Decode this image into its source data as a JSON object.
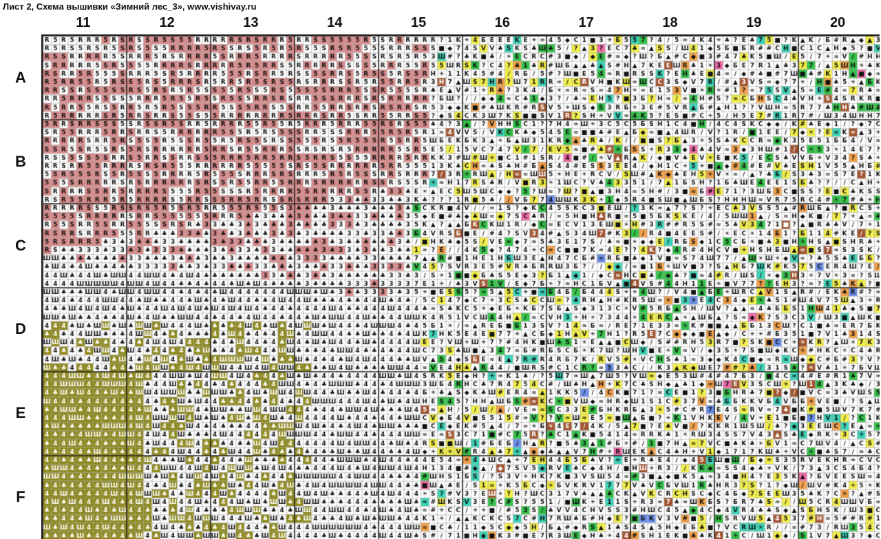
{
  "header": {
    "title": "Лист 2, Схема вышивки «Зимний лес_3», www.vishivay.ru"
  },
  "columns": [
    "11",
    "12",
    "13",
    "14",
    "15",
    "16",
    "17",
    "18",
    "19",
    "20"
  ],
  "rows": [
    "A",
    "B",
    "C",
    "D",
    "E",
    "F"
  ],
  "palette": {
    "salmon": "#d98c8c",
    "olive": "#8f8a1e",
    "yellow": "#f3ef4a",
    "green": "#34c24a",
    "teal": "#3ed3b8",
    "orange": "#f0a04a",
    "brown": "#a0522d",
    "pink": "#f06aa8",
    "blue": "#6a8fe8",
    "white": "#ffffff",
    "grid_line": "#9a9a9a",
    "major_line": "#222222"
  },
  "legend_symbols": [
    "R",
    "S",
    "5",
    "3",
    "Ш",
    "4",
    "♣",
    "☀",
    "≈",
    "▲",
    "■",
    "C",
    "H",
    "K",
    "Б",
    "Е",
    "?",
    "7",
    "1",
    "V",
    "#",
    "∕",
    "◆"
  ]
}
